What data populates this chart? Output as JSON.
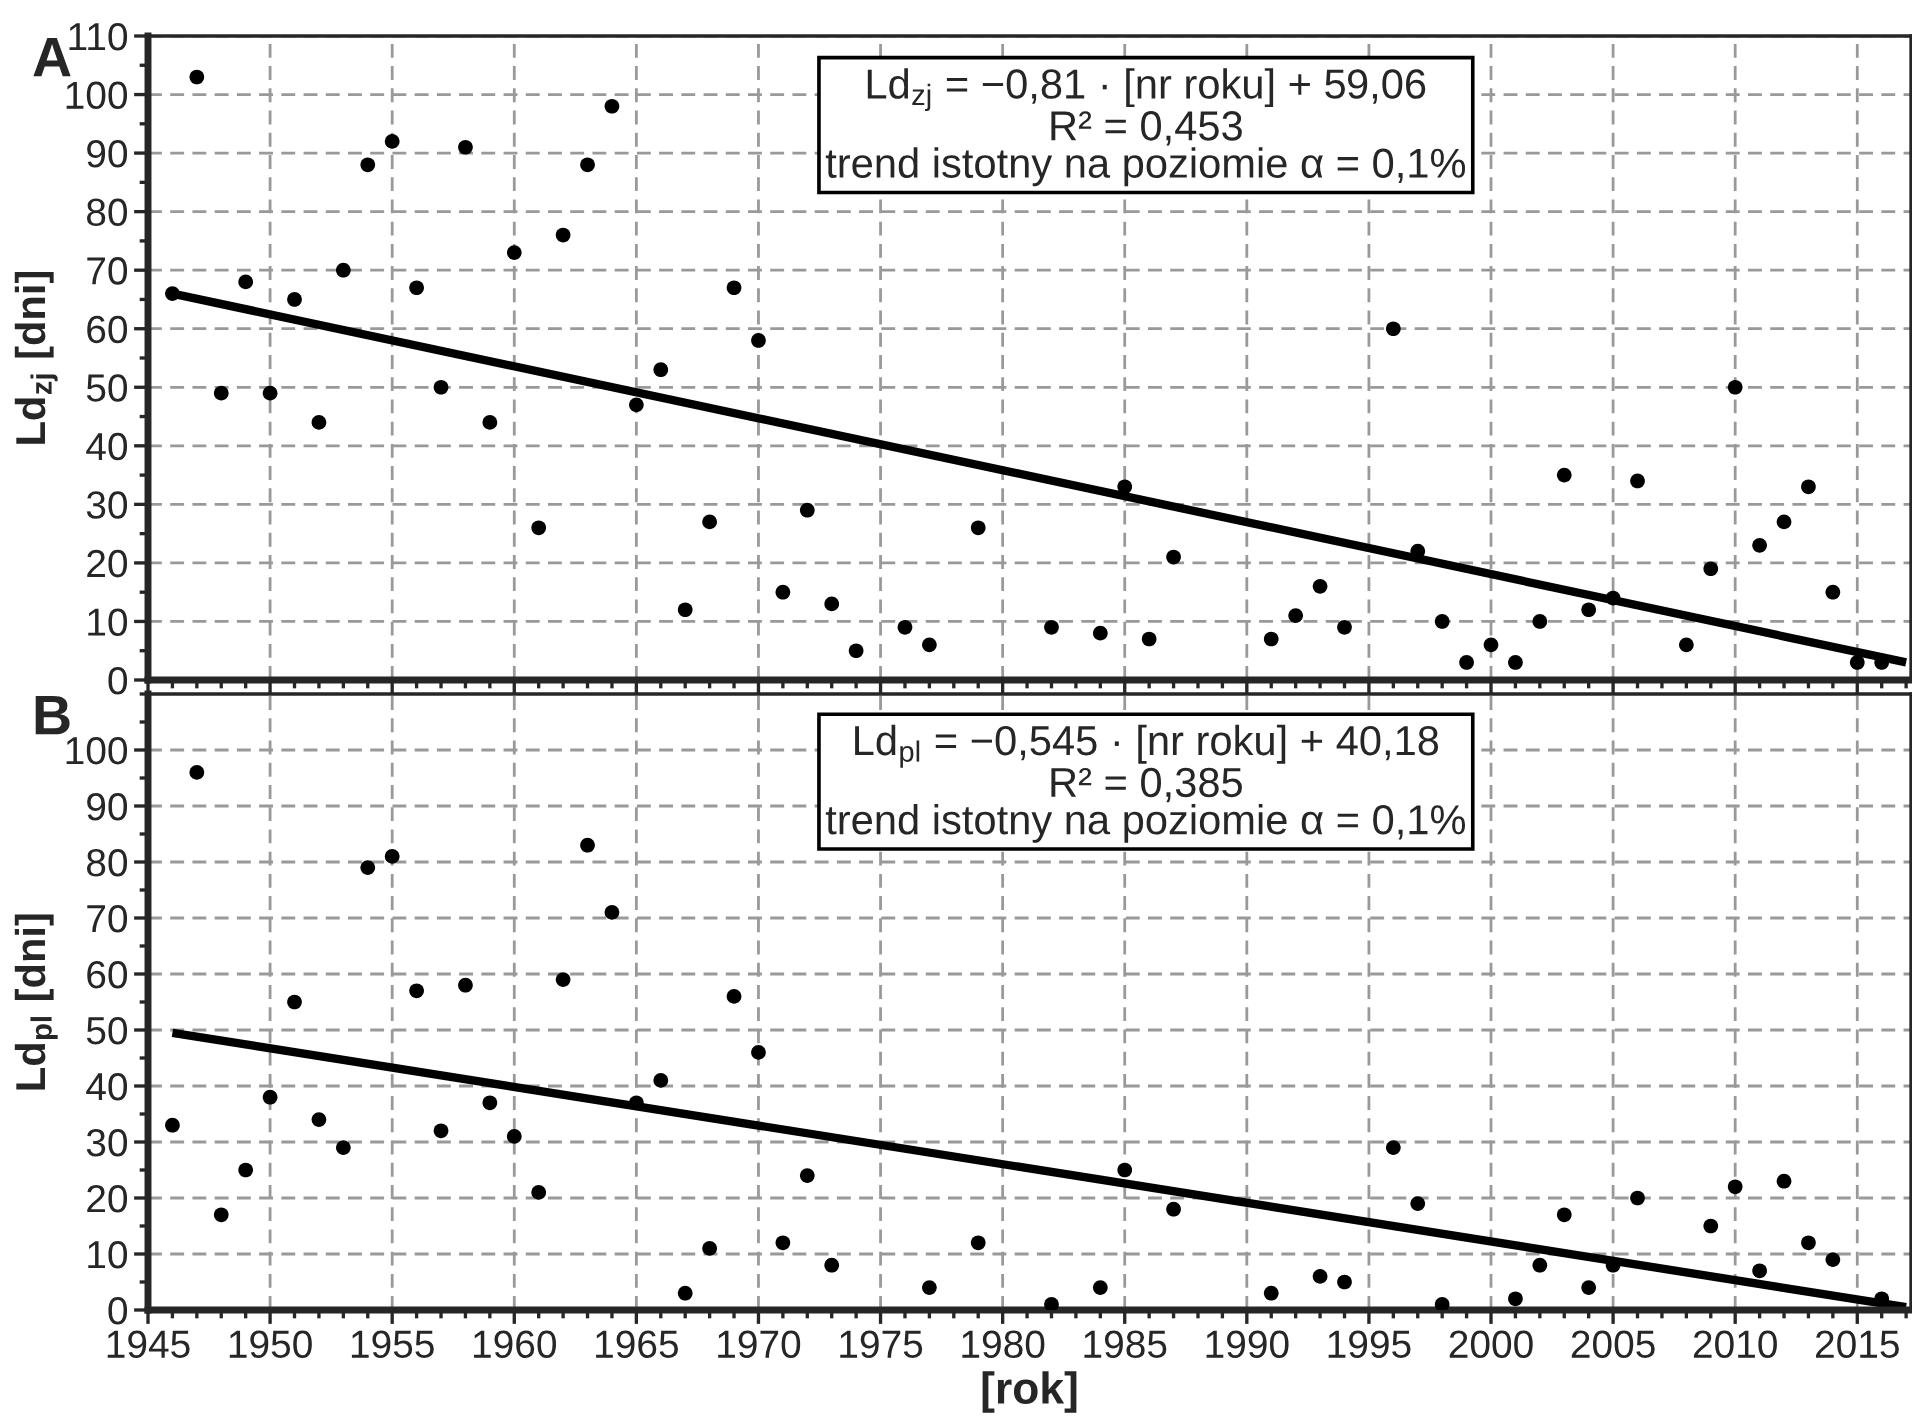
{
  "chart_data": [
    {
      "type": "scatter",
      "ylabel": "Ld$_{zj}$ [dni]",
      "annotations": [
        "A",
        "Ld$_{zj}$ = −0,81 · [nr roku] + 59,06",
        "R² = 0,453",
        "trend istotny na poziomie α = 0,1%"
      ],
      "xlim": [
        1945,
        2017.2
      ],
      "xticks": [
        1945,
        1950,
        1955,
        1960,
        1965,
        1970,
        1975,
        1980,
        1985,
        1990,
        1995,
        2000,
        2005,
        2010,
        2015
      ],
      "ylim": [
        0,
        110
      ],
      "yticks": [
        0,
        10,
        20,
        30,
        40,
        50,
        60,
        70,
        80,
        90,
        100,
        110
      ],
      "tick_labels": "y",
      "grid": true,
      "series": [
        {
          "marker": "circle",
          "color": "#000000",
          "x": [
            1946,
            1947,
            1948,
            1949,
            1950,
            1951,
            1952,
            1953,
            1954,
            1955,
            1956,
            1957,
            1958,
            1959,
            1960,
            1961,
            1962,
            1963,
            1964,
            1965,
            1966,
            1967,
            1968,
            1969,
            1970,
            1971,
            1972,
            1973,
            1974,
            1976,
            1977,
            1979,
            1982,
            1984,
            1985,
            1986,
            1987,
            1991,
            1992,
            1993,
            1994,
            1996,
            1997,
            1998,
            1999,
            2000,
            2001,
            2002,
            2003,
            2004,
            2005,
            2006,
            2008,
            2009,
            2010,
            2011,
            2012,
            2013,
            2014,
            2015,
            2016
          ],
          "values": [
            66,
            103,
            49,
            68,
            49,
            65,
            44,
            70,
            88,
            92,
            67,
            50,
            91,
            44,
            73,
            26,
            76,
            88,
            98,
            47,
            53,
            12,
            27,
            67,
            58,
            15,
            29,
            13,
            5,
            9,
            6,
            26,
            9,
            8,
            33,
            7,
            21,
            7,
            11,
            16,
            9,
            60,
            22,
            10,
            3,
            6,
            3,
            10,
            35,
            12,
            14,
            34,
            6,
            19,
            50,
            23,
            27,
            33,
            15,
            3,
            3
          ]
        },
        {
          "type": "line",
          "color": "#000000",
          "x": [
            1946,
            2017
          ],
          "values": [
            66,
            3
          ]
        }
      ]
    },
    {
      "type": "scatter",
      "ylabel": "Ld$_{pl}$ [dni]",
      "xlabel": "[rok]",
      "annotations": [
        "B",
        "Ld$_{pl}$ = −0,545 · [nr roku] + 40,18",
        "R² = 0,385",
        "trend istotny na poziomie α = 0,1%"
      ],
      "xlim": [
        1945,
        2017.2
      ],
      "xticks": [
        1945,
        1950,
        1955,
        1960,
        1965,
        1970,
        1975,
        1980,
        1985,
        1990,
        1995,
        2000,
        2005,
        2010,
        2015
      ],
      "ylim": [
        0,
        110
      ],
      "yticks": [
        0,
        10,
        20,
        30,
        40,
        50,
        60,
        70,
        80,
        90,
        100
      ],
      "grid": true,
      "series": [
        {
          "marker": "circle",
          "color": "#000000",
          "x": [
            1946,
            1947,
            1948,
            1949,
            1950,
            1951,
            1952,
            1953,
            1954,
            1955,
            1956,
            1957,
            1958,
            1959,
            1960,
            1961,
            1962,
            1963,
            1964,
            1965,
            1966,
            1967,
            1968,
            1969,
            1970,
            1971,
            1972,
            1973,
            1977,
            1979,
            1982,
            1984,
            1985,
            1987,
            1991,
            1993,
            1994,
            1996,
            1997,
            1998,
            2001,
            2002,
            2003,
            2004,
            2005,
            2006,
            2009,
            2010,
            2011,
            2012,
            2013,
            2014,
            2016
          ],
          "values": [
            33,
            96,
            17,
            25,
            38,
            55,
            34,
            29,
            79,
            81,
            57,
            32,
            58,
            37,
            31,
            21,
            59,
            83,
            71,
            37,
            41,
            3,
            11,
            56,
            46,
            12,
            24,
            8,
            4,
            12,
            1,
            4,
            25,
            18,
            3,
            6,
            5,
            29,
            19,
            1,
            2,
            8,
            17,
            4,
            8,
            20,
            15,
            22,
            7,
            23,
            12,
            9,
            2
          ]
        },
        {
          "type": "line",
          "color": "#000000",
          "x": [
            1946,
            2017
          ],
          "values": [
            49.5,
            0.5
          ]
        }
      ]
    }
  ]
}
